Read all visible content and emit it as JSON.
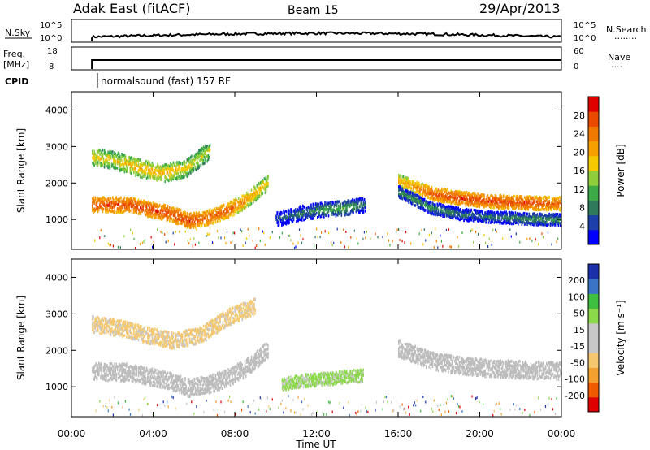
{
  "header": {
    "station": "Adak East (fitACF)",
    "beam": "Beam 15",
    "date": "29/Apr/2013"
  },
  "summary_panels": {
    "nsky": {
      "left_label": "N.Sky",
      "left_ticks": [
        "10^5",
        "10^0"
      ],
      "right_label": "N.Search",
      "right_ticks": [
        "10^5",
        "10^0"
      ]
    },
    "freq": {
      "left_label_1": "Freq.",
      "left_label_2": "[MHz]",
      "left_ticks": [
        "18",
        "8"
      ],
      "right_label": "Nave",
      "right_ticks": [
        "60",
        "0"
      ]
    },
    "cpid": {
      "label": "CPID",
      "program": "normalsound (fast) 157 RF"
    }
  },
  "colors": {
    "power_scale": [
      "#0000ff",
      "#1c3fa8",
      "#2f7a5a",
      "#3cab46",
      "#8fcd3a",
      "#f5c800",
      "#f5a000",
      "#f07a00",
      "#ea4a00",
      "#e00000"
    ],
    "velocity_scale": [
      "#e00000",
      "#ef5a00",
      "#f2a030",
      "#f5c870",
      "#c8c8c8",
      "#c8c8c8",
      "#8bd84b",
      "#3fbf3f",
      "#3a74c2",
      "#1a2fa8"
    ],
    "ground_scatter": "#bcbcbc"
  },
  "chart_data": [
    {
      "type": "heatmap",
      "panel": "power",
      "title": "",
      "ylabel": "Slant Range [km]",
      "xlim_hours": [
        0,
        24
      ],
      "ylim": [
        180,
        4500
      ],
      "yticks": [
        "1000",
        "2000",
        "3000",
        "4000"
      ],
      "colorbar": {
        "label": "Power [dB]",
        "ticks": [
          "4",
          "8",
          "12",
          "16",
          "20",
          "24",
          "28"
        ],
        "range": [
          0,
          32
        ]
      },
      "echo_regions": [
        {
          "t_start": 1.0,
          "t_end": 9.6,
          "range_center": [
            1400,
            1400,
            1380,
            1260,
            1150,
            950,
            1050,
            1250,
            1550,
            2000
          ],
          "width_km": 260,
          "power_db": [
            30,
            30,
            30,
            30,
            30,
            30,
            28,
            28,
            24,
            20
          ]
        },
        {
          "t_start": 1.0,
          "t_end": 6.8,
          "range_center": [
            2700,
            2600,
            2400,
            2250,
            2400,
            2900
          ],
          "width_km": 300,
          "power_db": [
            20,
            20,
            22,
            22,
            20,
            18
          ]
        },
        {
          "t_start": 10.0,
          "t_end": 14.4,
          "range_center": [
            1000,
            1150,
            1250,
            1300,
            1400
          ],
          "width_km": 250,
          "power_db": [
            8,
            10,
            12,
            14,
            10
          ]
        },
        {
          "t_start": 16.0,
          "t_end": 24.0,
          "range_center": [
            2050,
            1700,
            1560,
            1480,
            1440,
            1420
          ],
          "width_km": 230,
          "power_db": [
            22,
            28,
            30,
            30,
            30,
            28
          ]
        },
        {
          "t_start": 16.0,
          "t_end": 24.0,
          "range_center": [
            1750,
            1300,
            1120,
            1050,
            1000,
            980
          ],
          "width_km": 200,
          "power_db": [
            12,
            12,
            10,
            10,
            12,
            12
          ]
        }
      ]
    },
    {
      "type": "heatmap",
      "panel": "velocity",
      "title": "",
      "ylabel": "Slant Range [km]",
      "xlabel": "Time UT",
      "xlim_hours": [
        0,
        24
      ],
      "ylim": [
        180,
        4500
      ],
      "yticks": [
        "1000",
        "2000",
        "3000",
        "4000"
      ],
      "xticks": [
        "00:00",
        "04:00",
        "08:00",
        "12:00",
        "16:00",
        "20:00",
        "00:00"
      ],
      "colorbar": {
        "label": "Velocity [m s⁻¹]",
        "ticks": [
          "200",
          "100",
          "50",
          "15",
          "-15",
          "-50",
          "-100",
          "-200"
        ],
        "range": [
          -250,
          250
        ]
      },
      "echo_regions": [
        {
          "t_start": 1.0,
          "t_end": 9.6,
          "range_center": [
            1400,
            1400,
            1380,
            1260,
            1150,
            950,
            1050,
            1250,
            1550,
            2000
          ],
          "width_km": 300,
          "velocity": "ground-scatter"
        },
        {
          "t_start": 1.0,
          "t_end": 9.0,
          "range_center": [
            2700,
            2600,
            2400,
            2250,
            2400,
            2900,
            3200
          ],
          "width_km": 280,
          "velocity": -60
        },
        {
          "t_start": 10.3,
          "t_end": 14.3,
          "range_center": [
            1050,
            1150,
            1200,
            1250,
            1300
          ],
          "width_km": 220,
          "velocity": 60
        },
        {
          "t_start": 16.0,
          "t_end": 24.0,
          "range_center": [
            2050,
            1700,
            1560,
            1480,
            1440,
            1420
          ],
          "width_km": 300,
          "velocity": "ground-scatter"
        }
      ]
    }
  ]
}
